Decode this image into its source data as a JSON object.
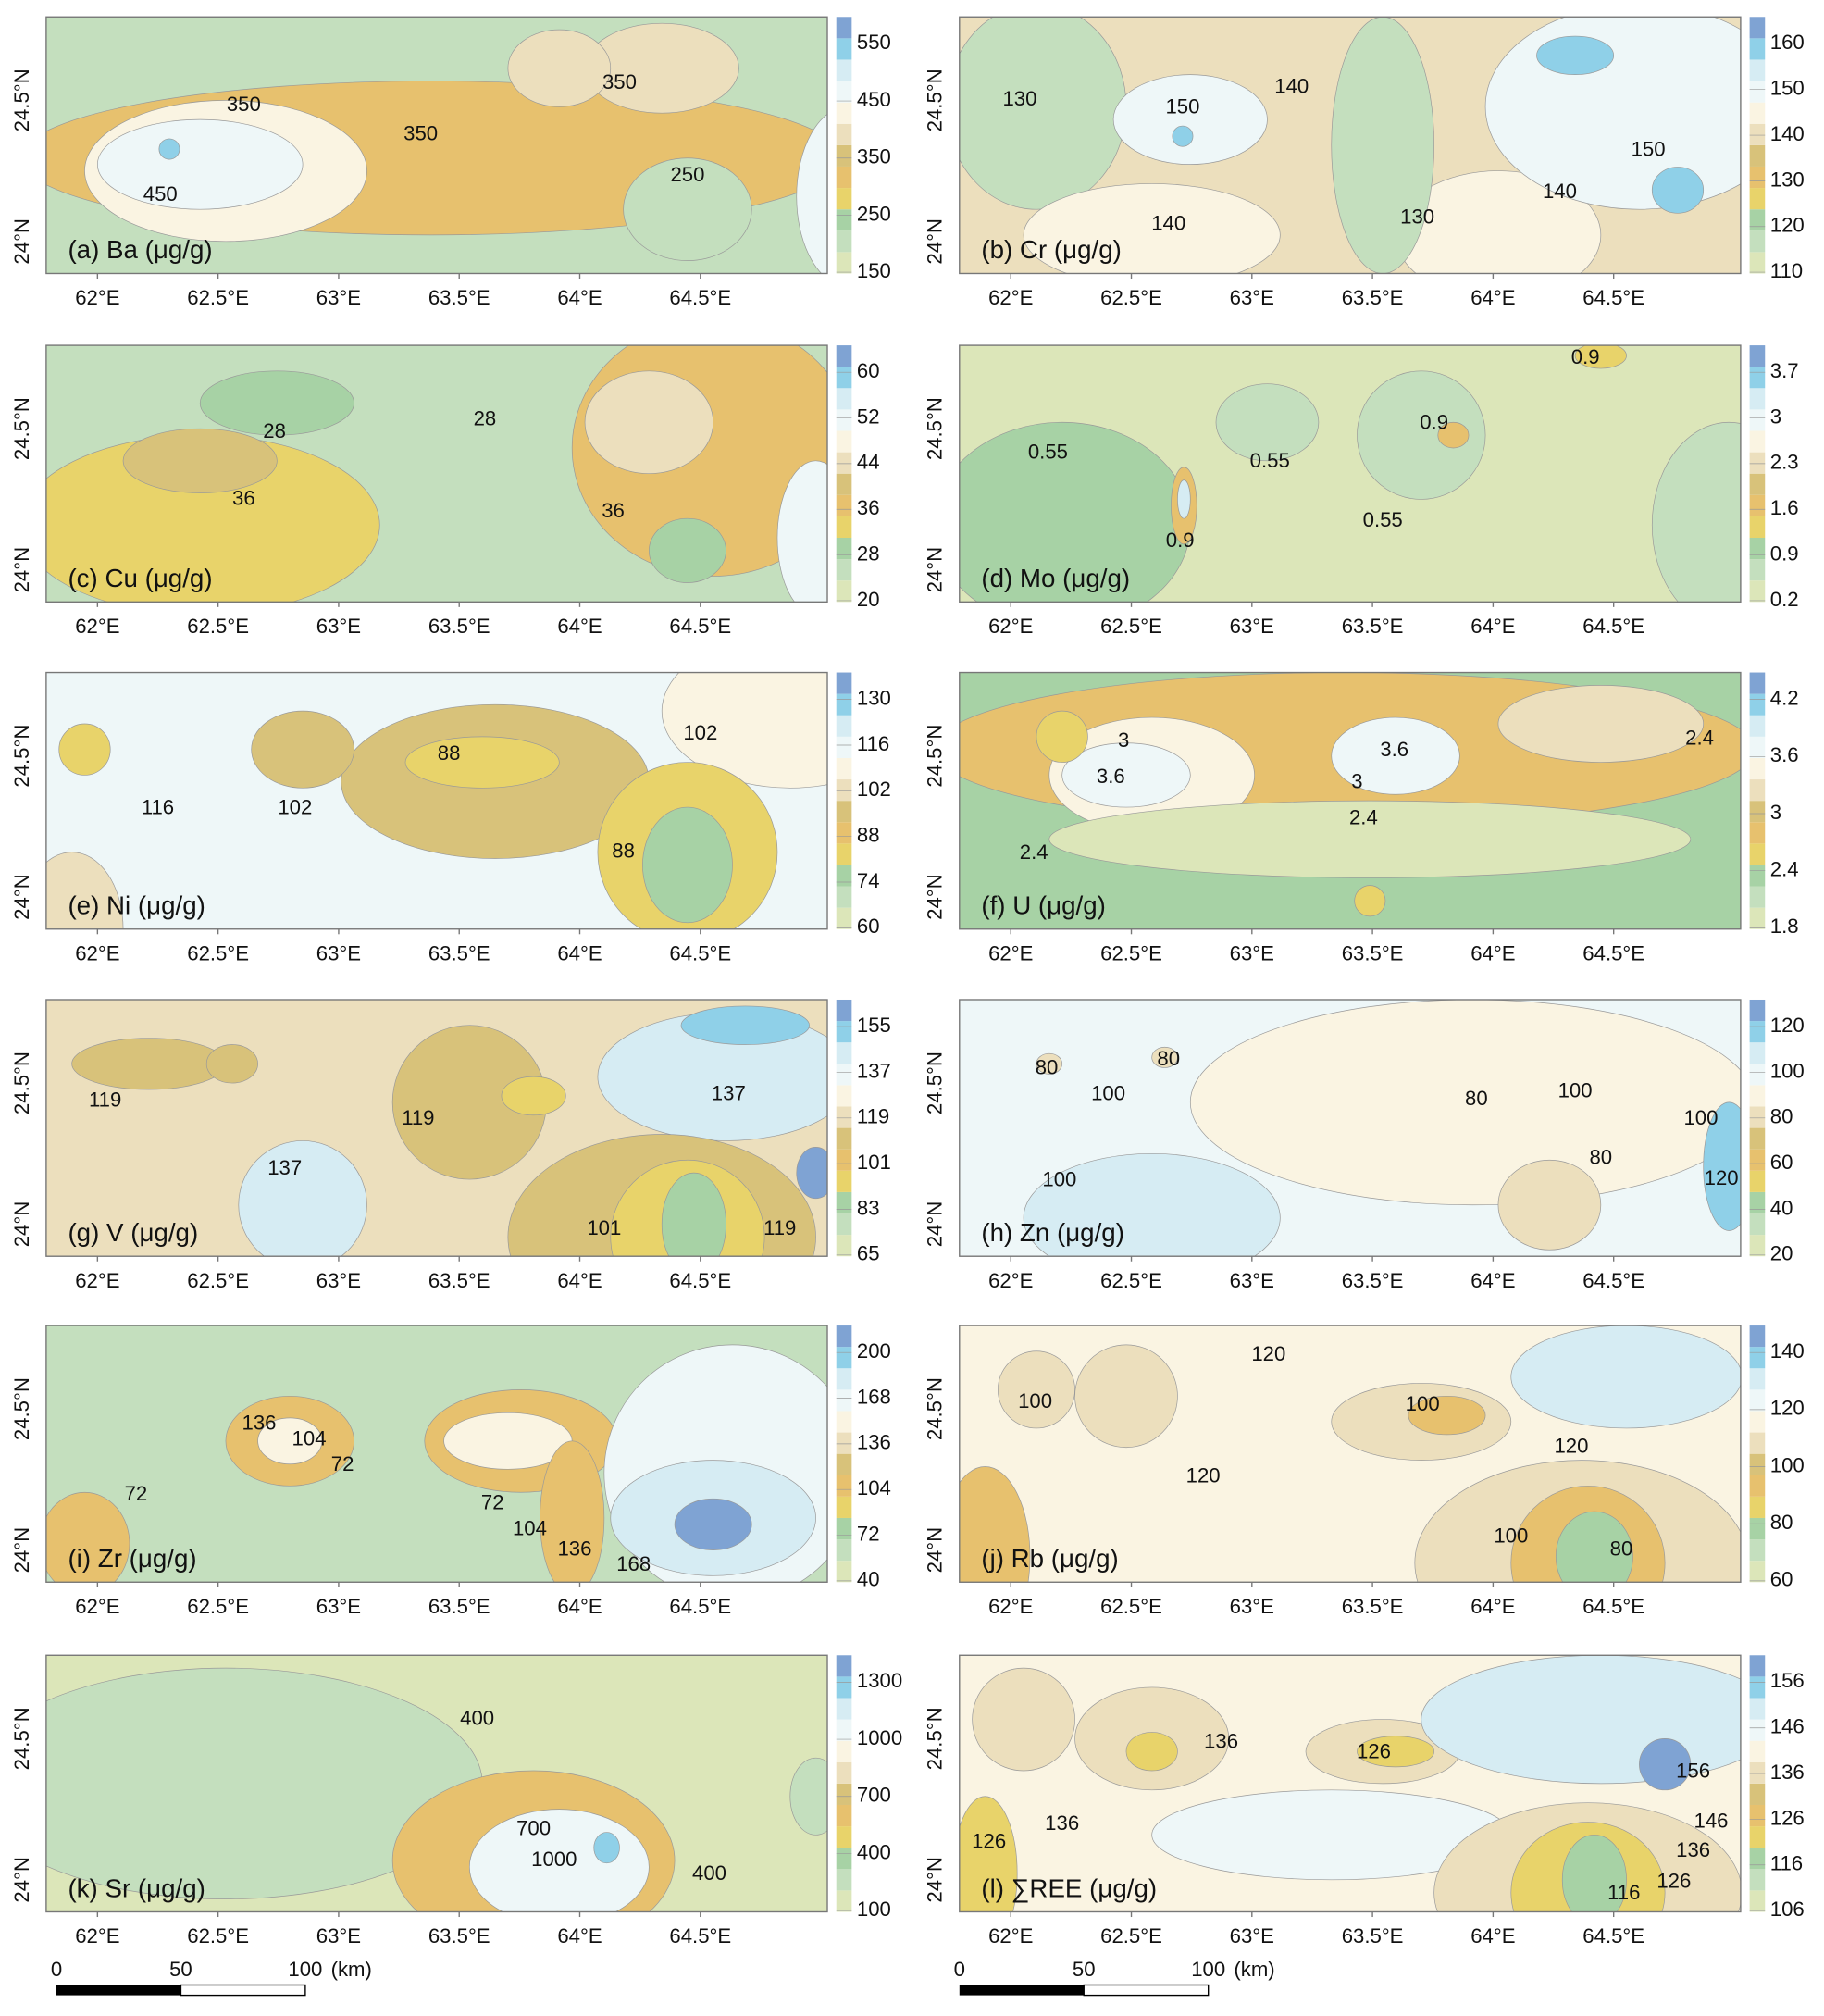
{
  "lon_labels": [
    "62°E",
    "62.5°E",
    "63°E",
    "63.5°E",
    "64°E",
    "64.5°E"
  ],
  "lat_labels": [
    "24.5°N",
    "24°N"
  ],
  "panels": [
    {
      "label": "(a) Ba (μg/g)",
      "colorbar": [
        550,
        450,
        350,
        250,
        150
      ],
      "contour_labels": [
        350,
        350,
        350,
        250,
        450
      ]
    },
    {
      "label": "(b) Cr (μg/g)",
      "colorbar": [
        160,
        150,
        140,
        130,
        120,
        110
      ],
      "contour_labels": [
        130,
        150,
        140,
        150,
        140,
        140,
        130
      ]
    },
    {
      "label": "(c) Cu (μg/g)",
      "colorbar": [
        60,
        52,
        44,
        36,
        28,
        20
      ],
      "contour_labels": [
        28,
        28,
        36,
        36
      ]
    },
    {
      "label": "(d) Mo (μg/g)",
      "colorbar": [
        3.7,
        3,
        2.3,
        1.6,
        0.9,
        0.2
      ],
      "contour_labels": [
        0.9,
        0.9,
        0.55,
        0.55,
        0.55,
        0.9
      ]
    },
    {
      "label": "(e) Ni (μg/g)",
      "colorbar": [
        130,
        116,
        102,
        88,
        74,
        60
      ],
      "contour_labels": [
        88,
        102,
        116,
        102,
        88
      ]
    },
    {
      "label": "(f) U (μg/g)",
      "colorbar": [
        4.2,
        3.6,
        3,
        2.4,
        1.8
      ],
      "contour_labels": [
        3,
        3.6,
        3.6,
        3,
        2.4,
        2.4,
        2.4
      ]
    },
    {
      "label": "(g) V (μg/g)",
      "colorbar": [
        155,
        137,
        119,
        101,
        83,
        65
      ],
      "contour_labels": [
        119,
        119,
        137,
        137,
        101,
        119
      ]
    },
    {
      "label": "(h) Zn (μg/g)",
      "colorbar": [
        120,
        100,
        80,
        60,
        40,
        20
      ],
      "contour_labels": [
        80,
        80,
        100,
        80,
        100,
        100,
        100,
        80,
        120
      ]
    },
    {
      "label": "(i) Zr (μg/g)",
      "colorbar": [
        200,
        168,
        136,
        104,
        72,
        40
      ],
      "contour_labels": [
        136,
        104,
        72,
        72,
        72,
        104,
        136,
        168
      ]
    },
    {
      "label": "(j) Rb (μg/g)",
      "colorbar": [
        140,
        120,
        100,
        80,
        60
      ],
      "contour_labels": [
        120,
        100,
        100,
        120,
        120,
        100,
        80
      ]
    },
    {
      "label": "(k) Sr (μg/g)",
      "colorbar": [
        1300,
        1000,
        700,
        400,
        100
      ],
      "contour_labels": [
        400,
        700,
        1000,
        400
      ]
    },
    {
      "label": "(l) ∑REE (μg/g)",
      "colorbar": [
        156,
        146,
        136,
        126,
        116,
        106
      ],
      "contour_labels": [
        136,
        126,
        156,
        136,
        146,
        126,
        136,
        126,
        116
      ]
    }
  ],
  "scale_bar": {
    "ticks": [
      0,
      50,
      100
    ],
    "unit": "(km)"
  }
}
